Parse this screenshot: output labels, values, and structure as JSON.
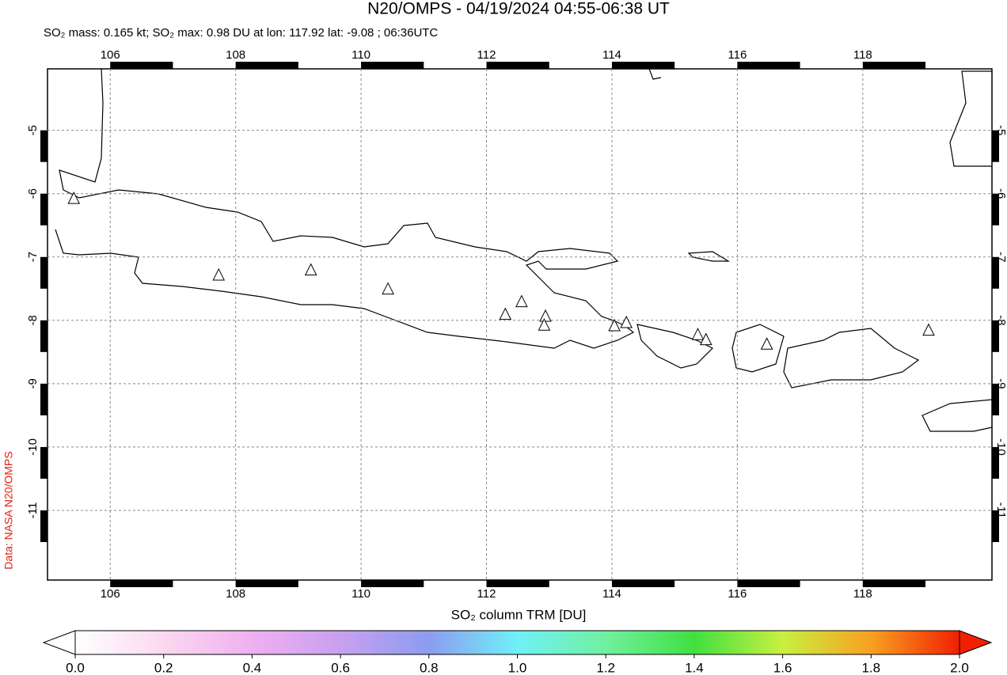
{
  "header": {
    "title": "N20/OMPS - 04/19/2024 04:55-06:38 UT",
    "subtitle": "SO₂ mass: 0.165 kt; SO₂ max: 0.98 DU at lon: 117.92 lat: -9.08 ; 06:36UTC"
  },
  "map": {
    "lonlim": [
      105,
      120.06
    ],
    "latlim": [
      -12.1,
      -4.03
    ],
    "lonticks": [
      106,
      108,
      110,
      112,
      114,
      116,
      118
    ],
    "latticks": [
      -5,
      -6,
      -7,
      -8,
      -9,
      -10,
      -11
    ],
    "volcanoes": [
      [
        105.42,
        -6.08
      ],
      [
        107.73,
        -7.29
      ],
      [
        109.2,
        -7.21
      ],
      [
        110.43,
        -7.51
      ],
      [
        112.3,
        -7.91
      ],
      [
        112.56,
        -7.71
      ],
      [
        112.94,
        -7.94
      ],
      [
        112.92,
        -8.08
      ],
      [
        114.04,
        -8.09
      ],
      [
        114.23,
        -8.04
      ],
      [
        115.37,
        -8.23
      ],
      [
        115.5,
        -8.31
      ],
      [
        116.47,
        -8.38
      ],
      [
        119.05,
        -8.16
      ]
    ]
  },
  "colorbar": {
    "label": "SO₂ column TRM [DU]",
    "lim": [
      0,
      2
    ],
    "ticks": [
      {
        "value": 0,
        "label": "0.0"
      },
      {
        "value": 0.2,
        "label": "0.2"
      },
      {
        "value": 0.4,
        "label": "0.4"
      },
      {
        "value": 0.6,
        "label": "0.6"
      },
      {
        "value": 0.8,
        "label": "0.8"
      },
      {
        "value": 1,
        "label": "1.0"
      },
      {
        "value": 1.2,
        "label": "1.2"
      },
      {
        "value": 1.4,
        "label": "1.4"
      },
      {
        "value": 1.6,
        "label": "1.6"
      },
      {
        "value": 1.8,
        "label": "1.8"
      },
      {
        "value": 2,
        "label": "2.0"
      }
    ]
  },
  "credit": "Data: NASA N20/OMPS"
}
